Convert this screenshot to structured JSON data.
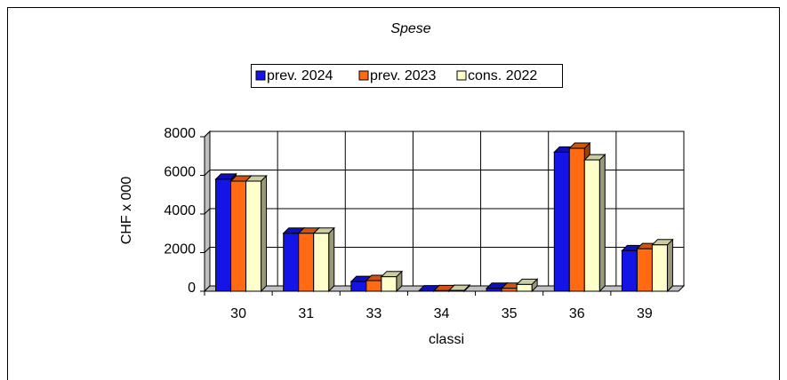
{
  "chart_data": {
    "type": "bar3d",
    "title": "Spese",
    "categories": [
      "30",
      "31",
      "33",
      "34",
      "35",
      "36",
      "39"
    ],
    "series": [
      {
        "name": "prev. 2024",
        "color": "#1414e6",
        "values": [
          5800,
          3000,
          500,
          20,
          150,
          7200,
          2100
        ]
      },
      {
        "name": "prev. 2023",
        "color": "#ff6a13",
        "values": [
          5700,
          3000,
          550,
          30,
          150,
          7400,
          2200
        ]
      },
      {
        "name": "cons. 2022",
        "color": "#ffffcc",
        "values": [
          5700,
          3000,
          750,
          40,
          350,
          6800,
          2400
        ]
      }
    ],
    "y_label": "CHF x 000",
    "x_label": "classi",
    "ylim": [
      0,
      8000
    ],
    "yticks": [
      0,
      2000,
      4000,
      6000,
      8000
    ],
    "grid": true,
    "legend": "top"
  }
}
